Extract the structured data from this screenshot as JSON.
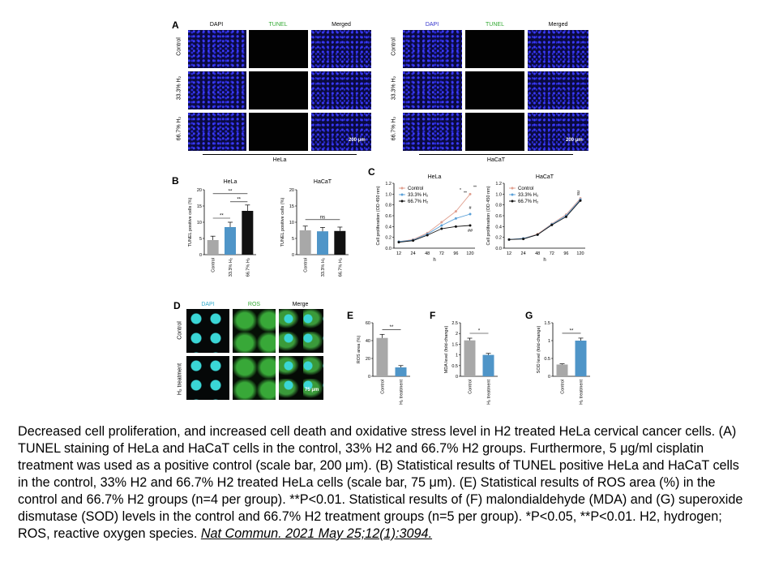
{
  "panels": {
    "A": {
      "letter": "A",
      "col_headers": [
        "DAPI",
        "TUNEL",
        "Merged"
      ],
      "row_labels": [
        "Control",
        "33.3% H₂",
        "66.7% H₂"
      ],
      "groups": [
        "HeLa",
        "HaCaT"
      ],
      "scale_bar": "200 μm",
      "colors": {
        "dapi": "#3333cc",
        "tunel": "#33aa33"
      }
    },
    "B": {
      "letter": "B"
    },
    "C": {
      "letter": "C"
    },
    "D": {
      "letter": "D",
      "col_headers": [
        "DAPI",
        "ROS",
        "Merge"
      ],
      "row_labels": [
        "Control",
        "H₂ treatment"
      ],
      "scale_bar": "75 μm",
      "colors": {
        "dapi": "#33aacc",
        "ros": "#33aa33"
      }
    },
    "E": {
      "letter": "E"
    },
    "F": {
      "letter": "F"
    },
    "G": {
      "letter": "G"
    }
  },
  "chart_data": [
    {
      "id": "B-HeLa",
      "type": "bar",
      "title": "HeLa",
      "ylabel": "TUNEL positive cells (%)",
      "ylim": [
        0,
        20
      ],
      "yticks": [
        0,
        5,
        10,
        15,
        20
      ],
      "categories": [
        "Control",
        "33.3% H₂",
        "66.7% H₂"
      ],
      "values": [
        4.5,
        8.5,
        13.5
      ],
      "errors": [
        1.2,
        1.5,
        1.8
      ],
      "colors": [
        "#a8a8a8",
        "#4f95c8",
        "#111111"
      ],
      "annotations": [
        "**",
        "**",
        "**"
      ]
    },
    {
      "id": "B-HaCaT",
      "type": "bar",
      "title": "HaCaT",
      "ylabel": "TUNEL positive cells (%)",
      "ylim": [
        0,
        20
      ],
      "yticks": [
        0,
        5,
        10,
        15,
        20
      ],
      "categories": [
        "Control",
        "33.3% H₂",
        "66.7% H₂"
      ],
      "values": [
        7.5,
        7.2,
        7.3
      ],
      "errors": [
        1.3,
        1.2,
        1.2
      ],
      "colors": [
        "#a8a8a8",
        "#4f95c8",
        "#111111"
      ],
      "annotations": [
        "ns"
      ]
    },
    {
      "id": "C-HeLa",
      "type": "line",
      "title": "HeLa",
      "xlabel": "h",
      "ylabel": "Cell proliferation (OD 450 nm)",
      "x": [
        12,
        24,
        48,
        72,
        96,
        120
      ],
      "ylim": [
        0,
        1.2
      ],
      "yticks": [
        0,
        0.2,
        0.4,
        0.6,
        0.8,
        1.0,
        1.2
      ],
      "series": [
        {
          "name": "Control",
          "values": [
            0.12,
            0.16,
            0.28,
            0.48,
            0.68,
            1.0
          ],
          "color": "#e0a090"
        },
        {
          "name": "33.3% H₂",
          "values": [
            0.12,
            0.15,
            0.26,
            0.42,
            0.55,
            0.63
          ],
          "color": "#5aa0d8"
        },
        {
          "name": "66.7% H₂",
          "values": [
            0.11,
            0.14,
            0.24,
            0.36,
            0.4,
            0.42
          ],
          "color": "#111111"
        }
      ],
      "annotations": [
        "*",
        "**",
        "**",
        "#",
        "##"
      ]
    },
    {
      "id": "C-HaCaT",
      "type": "line",
      "title": "HaCaT",
      "xlabel": "h",
      "ylabel": "Cell proliferation (OD 450 nm)",
      "x": [
        12,
        24,
        48,
        72,
        96,
        120
      ],
      "ylim": [
        0,
        1.2
      ],
      "yticks": [
        0,
        0.2,
        0.4,
        0.6,
        0.8,
        1.0,
        1.2
      ],
      "series": [
        {
          "name": "Control",
          "values": [
            0.16,
            0.18,
            0.26,
            0.45,
            0.62,
            0.92
          ],
          "color": "#e0a090"
        },
        {
          "name": "33.3% H₂",
          "values": [
            0.16,
            0.18,
            0.25,
            0.44,
            0.6,
            0.9
          ],
          "color": "#5aa0d8"
        },
        {
          "name": "66.7% H₂",
          "values": [
            0.16,
            0.17,
            0.25,
            0.43,
            0.58,
            0.88
          ],
          "color": "#111111"
        }
      ],
      "annotations": [
        "ns"
      ]
    },
    {
      "id": "E",
      "type": "bar",
      "title": "",
      "ylabel": "ROS area (%)",
      "ylim": [
        0,
        60
      ],
      "yticks": [
        0,
        20,
        40,
        60
      ],
      "categories": [
        "Control",
        "H₂ treatment"
      ],
      "values": [
        43,
        10
      ],
      "errors": [
        4,
        2
      ],
      "colors": [
        "#a8a8a8",
        "#4f95c8"
      ],
      "annotations": [
        "**"
      ]
    },
    {
      "id": "F",
      "type": "bar",
      "title": "",
      "ylabel": "MDA level (fold-change)",
      "ylim": [
        0,
        2.5
      ],
      "yticks": [
        0,
        0.5,
        1.0,
        1.5,
        2.0,
        2.5
      ],
      "categories": [
        "Control",
        "H₂ treatment"
      ],
      "values": [
        1.68,
        1.0
      ],
      "errors": [
        0.1,
        0.07
      ],
      "colors": [
        "#a8a8a8",
        "#4f95c8"
      ],
      "annotations": [
        "*"
      ]
    },
    {
      "id": "G",
      "type": "bar",
      "title": "",
      "ylabel": "SOD level (fold-change)",
      "ylim": [
        0,
        1.5
      ],
      "yticks": [
        0,
        0.5,
        1.0,
        1.5
      ],
      "categories": [
        "Control",
        "H₂ treatment"
      ],
      "values": [
        0.33,
        1.0
      ],
      "errors": [
        0.02,
        0.07
      ],
      "colors": [
        "#a8a8a8",
        "#4f95c8"
      ],
      "annotations": [
        "**"
      ]
    }
  ],
  "caption": {
    "text": "Decreased cell proliferation, and increased cell death and oxidative stress level in H2 treated HeLa cervical cancer cells. (A) TUNEL staining of HeLa and HaCaT cells in the control, 33% H2 and 66.7% H2 groups. Furthermore, 5 μg/ml cisplatin treatment was used as a positive control (scale bar, 200 μm). (B) Statistical results of TUNEL positive HeLa and HaCaT cells in the control, 33% H2 and 66.7% H2 treated HeLa cells (scale bar, 75 μm). (E) Statistical results of ROS area (%) in the control and 66.7% H2 groups (n=4 per group). **P<0.01. Statistical results of (F) malondialdehyde (MDA) and (G) superoxide dismutase (SOD) levels in the control and 66.7% H2 treatment groups (n=5 per group). *P<0.05, **P<0.01. H2, hydrogen; ROS, reactive oxygen species. ",
    "citation": "Nat Commun. 2021 May 25;12(1):3094."
  }
}
